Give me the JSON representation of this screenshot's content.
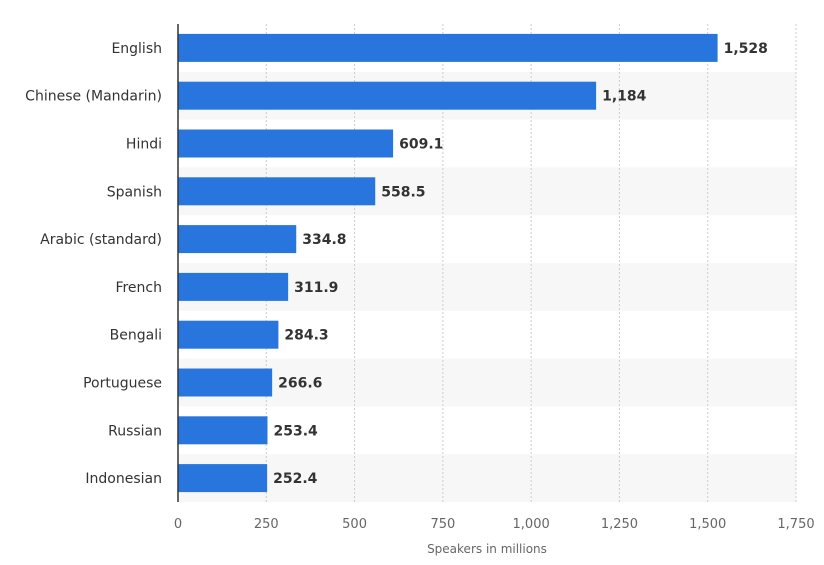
{
  "chart_data": {
    "type": "bar",
    "orientation": "horizontal",
    "categories": [
      "English",
      "Chinese (Mandarin)",
      "Hindi",
      "Spanish",
      "Arabic (standard)",
      "French",
      "Bengali",
      "Portuguese",
      "Russian",
      "Indonesian"
    ],
    "values": [
      1528,
      1184,
      609.1,
      558.5,
      334.8,
      311.9,
      284.3,
      266.6,
      253.4,
      252.4
    ],
    "value_labels": [
      "1,528",
      "1,184",
      "609.1",
      "558.5",
      "334.8",
      "311.9",
      "284.3",
      "266.6",
      "253.4",
      "252.4"
    ],
    "xlabel": "Speakers in millions",
    "ylabel": "",
    "xlim": [
      0,
      1750
    ],
    "xticks": [
      0,
      250,
      500,
      750,
      1000,
      1250,
      1500,
      1750
    ],
    "xtick_labels": [
      "0",
      "250",
      "500",
      "750",
      "1,000",
      "1,250",
      "1,500",
      "1,750"
    ],
    "grid": true,
    "alternating_row_bands": true,
    "bar_color": "#2876dd",
    "band_color": "#f7f7f7"
  }
}
